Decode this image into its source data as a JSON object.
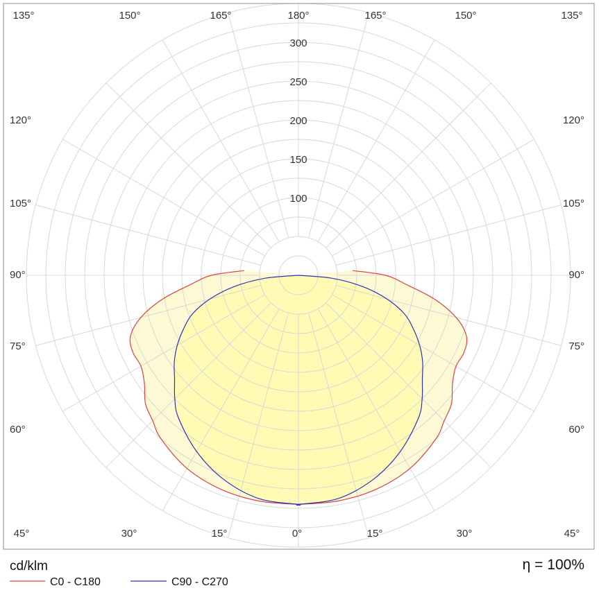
{
  "chart_data": {
    "type": "polar",
    "unit_label": "cd/klm",
    "efficiency_label": "η = 100%",
    "radial_ticks": [
      100,
      150,
      200,
      250,
      300
    ],
    "radial_max": 350,
    "angle_labels": {
      "top": [
        "135°",
        "150°",
        "165°",
        "180°",
        "165°",
        "150°",
        "135°"
      ],
      "side_left": [
        "120°",
        "105°",
        "90°",
        "75°",
        "60°"
      ],
      "side_right": [
        "120°",
        "105°",
        "90°",
        "75°",
        "60°"
      ],
      "bottom": [
        "45°",
        "30°",
        "15°",
        "0°",
        "15°",
        "30°",
        "45°"
      ]
    },
    "series": [
      {
        "name": "C0 - C180",
        "color": "#e04040",
        "fill": "#fcf8cf",
        "angles": [
          0,
          10,
          20,
          30,
          40,
          45,
          50,
          55,
          60,
          65,
          70,
          75,
          80,
          85,
          90,
          95
        ],
        "values": [
          295,
          295,
          293,
          287,
          275,
          265,
          257,
          242,
          234,
          235,
          230,
          210,
          178,
          140,
          112,
          70
        ]
      },
      {
        "name": "C90 - C270",
        "color": "#3030c0",
        "fill": "#fffbb0",
        "angles": [
          0,
          10,
          20,
          30,
          40,
          45,
          50,
          55,
          60,
          65,
          70,
          75,
          80,
          85,
          90
        ],
        "values": [
          295,
          292,
          280,
          262,
          240,
          225,
          208,
          195,
          180,
          163,
          145,
          118,
          84,
          43,
          0
        ]
      }
    ]
  }
}
